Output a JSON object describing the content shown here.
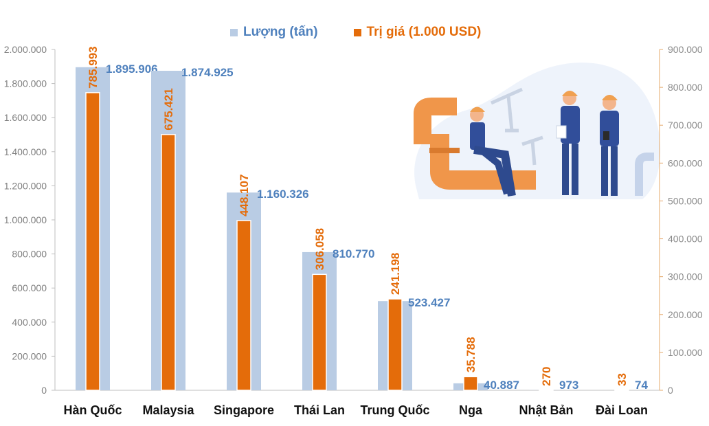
{
  "chart_data": {
    "type": "bar",
    "categories": [
      "Hàn Quốc",
      "Malaysia",
      "Singapore",
      "Thái Lan",
      "Trung Quốc",
      "Nga",
      "Nhật Bản",
      "Đài Loan"
    ],
    "series": [
      {
        "name": "Lượng (tấn)",
        "axis": "left",
        "values": [
          1895906,
          1874925,
          1160326,
          810770,
          523427,
          40887,
          973,
          74
        ],
        "labels": [
          "1.895.906",
          "1.874.925",
          "1.160.326",
          "810.770",
          "523.427",
          "40.887",
          "973",
          "74"
        ]
      },
      {
        "name": "Trị giá (1.000 USD)",
        "axis": "right",
        "values": [
          785993,
          675421,
          448107,
          306058,
          241198,
          35788,
          270,
          33
        ],
        "labels": [
          "785.993",
          "675.421",
          "448.107",
          "306.058",
          "241.198",
          "35.788",
          "270",
          "33"
        ]
      }
    ],
    "y_left": {
      "range": [
        0,
        2000000
      ],
      "ticks": [
        "0",
        "200.000",
        "400.000",
        "600.000",
        "800.000",
        "1.000.000",
        "1.200.000",
        "1.400.000",
        "1.600.000",
        "1.800.000",
        "2.000.000"
      ]
    },
    "y_right": {
      "range": [
        0,
        900000
      ],
      "ticks": [
        "0",
        "100.000",
        "200.000",
        "300.000",
        "400.000",
        "500.000",
        "600.000",
        "700.000",
        "800.000",
        "900.000"
      ]
    },
    "legend_position": "top-center",
    "grid": false,
    "colors": {
      "quantity_bar": "#b9cce4",
      "quantity_label": "#4f81bd",
      "value_bar": "#e46c0a",
      "value_label": "#e46c0a",
      "left_tick": "#7f7f7f",
      "right_tick": "#8a8a8a"
    }
  },
  "illustration": {
    "description_icon": "oil-workers-icon"
  }
}
